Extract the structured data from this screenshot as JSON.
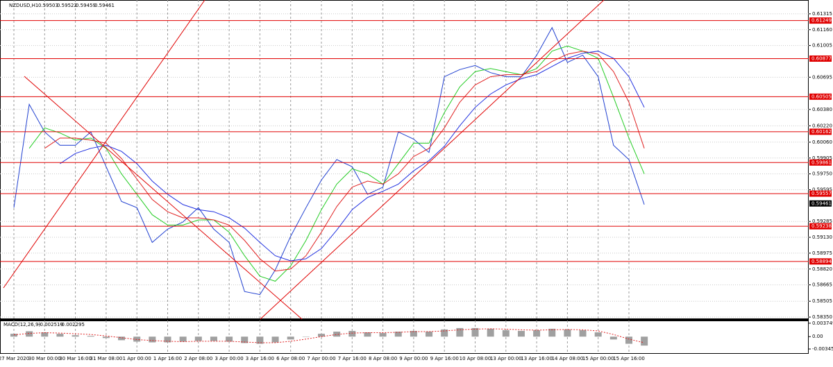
{
  "chart_data": [
    {
      "type": "line",
      "title": "NZDUSD,H1",
      "ohlc": [
        0.59503,
        0.59522,
        0.59459,
        0.59461
      ],
      "categories": [
        "27 Mar 2020",
        null,
        "30 Mar 00:00",
        null,
        "30 Mar 16:00",
        null,
        "31 Mar 08:00",
        null,
        "1 Apr 00:00",
        null,
        "1 Apr 16:00",
        null,
        "2 Apr 08:00",
        null,
        "3 Apr 00:00",
        null,
        "3 Apr 16:00",
        null,
        "6 Apr 08:00",
        null,
        "7 Apr 00:00",
        null,
        "7 Apr 16:00",
        null,
        "8 Apr 08:00",
        null,
        "9 Apr 00:00",
        null,
        "9 Apr 16:00",
        null,
        "10 Apr 08:00",
        null,
        "13 Apr 00:00",
        null,
        "13 Apr 16:00",
        null,
        "14 Apr 08:00",
        null,
        "15 Apr 00:00",
        null,
        "15 Apr 16:00",
        null
      ],
      "series": [
        {
          "color": "#1f3fd0",
          "values": [
            0.5942,
            0.6043,
            0.6016,
            0.6003,
            0.6003,
            0.6016,
            0.5982,
            0.5948,
            0.5942,
            0.5908,
            0.5921,
            0.5928,
            0.5942,
            0.5921,
            0.5908,
            0.586,
            0.5857,
            0.5881,
            0.5914,
            0.5942,
            0.5969,
            0.5989,
            0.5982,
            0.5955,
            0.5962,
            0.6016,
            0.6009,
            0.5996,
            0.607,
            0.6077,
            0.6081,
            0.6074,
            0.607,
            0.607,
            0.6091,
            0.6118,
            0.6084,
            0.6091,
            0.607,
            0.6003,
            0.5989,
            0.5945
          ]
        },
        {
          "color": "#22cc22",
          "values": [
            null,
            0.6,
            0.602,
            0.6015,
            0.6008,
            0.601,
            0.6,
            0.5975,
            0.5955,
            0.5935,
            0.5925,
            0.5925,
            0.593,
            0.593,
            0.5918,
            0.5895,
            0.5875,
            0.587,
            0.5885,
            0.591,
            0.594,
            0.5965,
            0.598,
            0.5975,
            0.5965,
            0.5985,
            0.6005,
            0.6005,
            0.6035,
            0.606,
            0.6075,
            0.6078,
            0.6075,
            0.6072,
            0.6078,
            0.6095,
            0.61,
            0.6095,
            0.6088,
            0.605,
            0.601,
            0.5975
          ]
        },
        {
          "color": "#e02020",
          "values": [
            null,
            null,
            0.6,
            0.601,
            0.601,
            0.6008,
            0.6005,
            0.599,
            0.597,
            0.595,
            0.5938,
            0.5932,
            0.5932,
            0.593,
            0.5925,
            0.591,
            0.5892,
            0.588,
            0.5882,
            0.5895,
            0.5918,
            0.5943,
            0.5962,
            0.5968,
            0.5965,
            0.5975,
            0.5992,
            0.6,
            0.602,
            0.6045,
            0.6062,
            0.607,
            0.6072,
            0.6072,
            0.6075,
            0.6085,
            0.6092,
            0.6095,
            0.6092,
            0.6075,
            0.6045,
            0.6
          ]
        },
        {
          "color": "#2030e0",
          "values": [
            null,
            null,
            null,
            0.5985,
            0.5995,
            0.6,
            0.6003,
            0.5997,
            0.5985,
            0.5968,
            0.5955,
            0.5945,
            0.594,
            0.5938,
            0.5932,
            0.5922,
            0.5908,
            0.5895,
            0.589,
            0.5892,
            0.5902,
            0.592,
            0.594,
            0.5952,
            0.5958,
            0.5965,
            0.5978,
            0.5988,
            0.6002,
            0.6022,
            0.604,
            0.6053,
            0.6062,
            0.6068,
            0.6072,
            0.608,
            0.6088,
            0.6093,
            0.6095,
            0.6088,
            0.607,
            0.604
          ]
        }
      ],
      "levels": [
        0.61249,
        0.60877,
        0.60505,
        0.60162,
        0.59861,
        0.59557,
        0.59238,
        0.58894
      ],
      "level_color": "#e00000",
      "last_price": 0.59461,
      "ylim": [
        0.5833,
        0.6145
      ],
      "yticks": [
        0.61315,
        {
          "value": 0.6116,
          "label": "0.61160"
        },
        0.61005,
        0.60695,
        {
          "value": 0.6038,
          "label": "0.60380"
        },
        {
          "value": 0.6022,
          "label": "0.60220"
        },
        {
          "value": 0.6006,
          "label": "0.60060"
        },
        0.59905,
        {
          "value": 0.5975,
          "label": "0.59750"
        },
        0.59595,
        0.59285,
        {
          "value": 0.5913,
          "label": "0.59130"
        },
        0.58975,
        {
          "value": 0.5882,
          "label": "0.58820"
        },
        0.58665,
        0.58505,
        {
          "value": 0.5835,
          "label": "0.58350"
        }
      ],
      "grid": true
    },
    {
      "type": "macd",
      "title": "MACD(12,26,9)",
      "current": [
        -0.002519,
        -0.002295
      ],
      "histogram": {
        "color": "#a0a0a0",
        "values": [
          0.0008,
          0.0015,
          0.0012,
          0.0008,
          0.0004,
          0.0002,
          -0.0004,
          -0.001,
          -0.0014,
          -0.0016,
          -0.0016,
          -0.0014,
          -0.0012,
          -0.0012,
          -0.0014,
          -0.0018,
          -0.002,
          -0.0016,
          -0.0008,
          0.0,
          0.0008,
          0.0014,
          0.0016,
          0.0012,
          0.001,
          0.0014,
          0.0016,
          0.0014,
          0.002,
          0.0024,
          0.0024,
          0.0022,
          0.0018,
          0.0016,
          0.0018,
          0.0022,
          0.002,
          0.0018,
          0.0012,
          -0.0008,
          -0.002,
          -0.0025
        ]
      },
      "signal": {
        "color": "#e02020",
        "values": [
          0.0005,
          0.0009,
          0.0011,
          0.001,
          0.0008,
          0.0006,
          0.0002,
          -0.0003,
          -0.0008,
          -0.0011,
          -0.0013,
          -0.0014,
          -0.0013,
          -0.0013,
          -0.0013,
          -0.0015,
          -0.0017,
          -0.0017,
          -0.0013,
          -0.0007,
          0.0,
          0.0006,
          0.001,
          0.0011,
          0.0011,
          0.0012,
          0.0014,
          0.0014,
          0.0016,
          0.0019,
          0.0021,
          0.0022,
          0.0021,
          0.0019,
          0.0018,
          0.0019,
          0.002,
          0.0019,
          0.0016,
          0.0006,
          -0.0007,
          -0.0017
        ]
      },
      "ylim": [
        -0.0048,
        0.0045
      ],
      "yticks": [
        0.003749,
        {
          "value": 0,
          "label": "0.00"
        },
        -0.00345
      ]
    }
  ]
}
